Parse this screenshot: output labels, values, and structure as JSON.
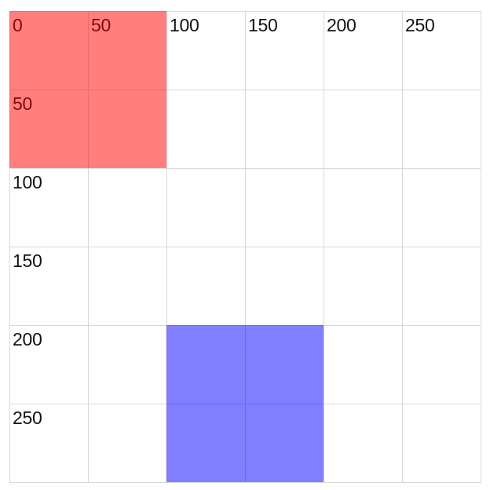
{
  "grid": {
    "cols": 6,
    "rows": 6,
    "col_labels": [
      "0",
      "50",
      "100",
      "150",
      "200",
      "250"
    ],
    "row_labels": [
      "0",
      "50",
      "100",
      "150",
      "200",
      "250"
    ],
    "line_color": "#d9d9d9",
    "label_color": "#111111"
  },
  "rects": [
    {
      "name": "red-rectangle",
      "color": "#ff0000",
      "opacity": 0.5,
      "col_start": 0,
      "row_start": 0,
      "col_span": 2,
      "row_span": 2
    },
    {
      "name": "blue-rectangle",
      "color": "#0000ff",
      "opacity": 0.5,
      "col_start": 2,
      "row_start": 4,
      "col_span": 2,
      "row_span": 2
    }
  ]
}
